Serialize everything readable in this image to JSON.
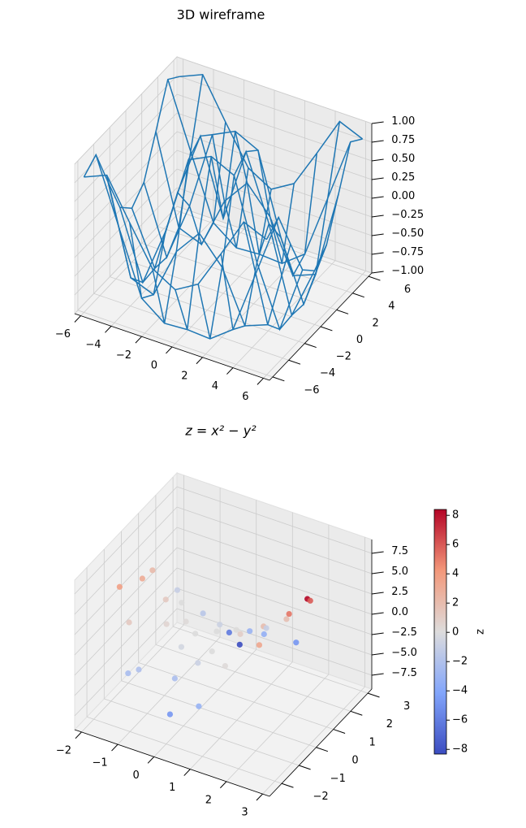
{
  "chart_data": [
    {
      "type": "wireframe",
      "title": "3D wireframe",
      "color": "#1f77b4",
      "x": [
        -6,
        -4.5,
        -3,
        -1.5,
        0,
        1.5,
        3,
        4.5,
        6
      ],
      "y": [
        -6,
        -4.5,
        -3,
        -1.5,
        0,
        1.5,
        3,
        4.5,
        6
      ],
      "z": [
        [
          0.81,
          0.94,
          0.41,
          -0.1,
          -0.28,
          -0.1,
          0.41,
          0.94,
          0.81
        ],
        [
          0.94,
          0.08,
          -0.77,
          -1,
          -0.98,
          -1,
          -0.77,
          0.08,
          0.94
        ],
        [
          0.41,
          -0.77,
          -0.89,
          -0.21,
          0.14,
          -0.21,
          -0.89,
          -0.77,
          0.41
        ],
        [
          -0.1,
          -1,
          -0.21,
          0.85,
          1,
          0.85,
          -0.21,
          -1,
          -0.1
        ],
        [
          -0.28,
          -0.98,
          0.14,
          1,
          0,
          1,
          0.14,
          -0.98,
          -0.28
        ],
        [
          -0.1,
          -1,
          -0.21,
          0.85,
          1,
          0.85,
          -0.21,
          -1,
          -0.1
        ],
        [
          0.41,
          -0.77,
          -0.89,
          -0.21,
          0.14,
          -0.21,
          -0.89,
          -0.77,
          0.41
        ],
        [
          0.94,
          0.08,
          -0.77,
          -1,
          -0.98,
          -1,
          -0.77,
          0.08,
          0.94
        ],
        [
          0.81,
          0.94,
          0.41,
          -0.1,
          -0.28,
          -0.1,
          0.41,
          0.94,
          0.81
        ]
      ],
      "xlim": [
        -6.4,
        6.4
      ],
      "ylim": [
        -6.4,
        6.4
      ],
      "zlim": [
        -1,
        1
      ],
      "xticks": [
        {
          "value": -6,
          "label": "−6"
        },
        {
          "value": -4,
          "label": "−4"
        },
        {
          "value": -2,
          "label": "−2"
        },
        0,
        2,
        4,
        6
      ],
      "yticks": [
        {
          "value": -6,
          "label": "−6"
        },
        {
          "value": -4,
          "label": "−4"
        },
        {
          "value": -2,
          "label": "−2"
        },
        0,
        2,
        4,
        6
      ],
      "zticks": [
        {
          "value": -1,
          "label": "−1.00"
        },
        {
          "value": -0.75,
          "label": "−0.75"
        },
        {
          "value": -0.5,
          "label": "−0.50"
        },
        {
          "value": -0.25,
          "label": "−0.25"
        },
        {
          "value": 0,
          "label": "0.00"
        },
        {
          "value": 0.25,
          "label": "0.25"
        },
        {
          "value": 0.5,
          "label": "0.50"
        },
        {
          "value": 0.75,
          "label": "0.75"
        },
        {
          "value": 1,
          "label": "1.00"
        }
      ],
      "grid": true
    },
    {
      "type": "scatter3d",
      "title": "z = x² − y²",
      "cmap": "coolwarm",
      "x": [
        2.9,
        2.6,
        -2.0,
        -1.8,
        -1.5,
        -1.2,
        -1.0,
        -0.8,
        -0.5,
        0.0,
        0.2,
        -0.4,
        0.5,
        0.3,
        0.6,
        1.0,
        1.2,
        1.5,
        1.8,
        2.0,
        0.8,
        -1.5,
        -0.9,
        0.1,
        -0.2,
        1.1,
        0.4,
        -1.9,
        -0.6,
        0.9,
        2.3,
        -0.3,
        1.4,
        -1.1,
        0.7,
        -0.1
      ],
      "y": [
        0.1,
        0.9,
        -0.5,
        0.4,
        -1.0,
        0.5,
        1.0,
        -0.3,
        0.2,
        -1.5,
        -2.2,
        2.5,
        1.8,
        0.3,
        -0.6,
        0.2,
        -1.1,
        0.5,
        1.2,
        -0.8,
        2.0,
        1.8,
        -1.7,
        0.9,
        -0.7,
        1.5,
        -1.0,
        1.2,
        1.4,
        -2.0,
        0.3,
        2.9,
        2.6,
        -1.9,
        0.6,
        -0.1
      ],
      "z": [
        8.4,
        5.95,
        3.75,
        3.08,
        1.25,
        1.19,
        0,
        0.55,
        0.21,
        -2.25,
        -4.8,
        -6.09,
        -2.99,
        0,
        0,
        0.96,
        0.23,
        2.0,
        1.8,
        3.36,
        -3.36,
        -0.99,
        -2.08,
        -0.8,
        -0.45,
        -1.04,
        -0.84,
        2.17,
        -1.6,
        -3.19,
        5.2,
        -8.32,
        -4.8,
        -2.4,
        0.13,
        0
      ],
      "xlim": [
        -2.19,
        3.19
      ],
      "ylim": [
        -2.71,
        3.23
      ],
      "zlim": [
        -9.2,
        9.2
      ],
      "xticks": [
        {
          "value": -2,
          "label": "−2"
        },
        {
          "value": -1,
          "label": "−1"
        },
        0,
        1,
        2,
        3
      ],
      "yticks": [
        {
          "value": -2,
          "label": "−2"
        },
        {
          "value": -1,
          "label": "−1"
        },
        0,
        1,
        2,
        3
      ],
      "zticks": [
        {
          "value": -7.5,
          "label": "−7.5"
        },
        {
          "value": -5,
          "label": "−5.0"
        },
        {
          "value": -2.5,
          "label": "−2.5"
        },
        {
          "value": 0,
          "label": "0.0"
        },
        {
          "value": 2.5,
          "label": "2.5"
        },
        {
          "value": 5,
          "label": "5.0"
        },
        {
          "value": 7.5,
          "label": "7.5"
        }
      ],
      "grid": true,
      "colorbar": {
        "label": "z",
        "clim": [
          -8.32,
          8.4
        ],
        "ticks": [
          {
            "value": -8,
            "label": "−8"
          },
          {
            "value": -6,
            "label": "−6"
          },
          {
            "value": -4,
            "label": "−4"
          },
          {
            "value": -2,
            "label": "−2"
          },
          0,
          2,
          4,
          6,
          8
        ]
      }
    }
  ]
}
